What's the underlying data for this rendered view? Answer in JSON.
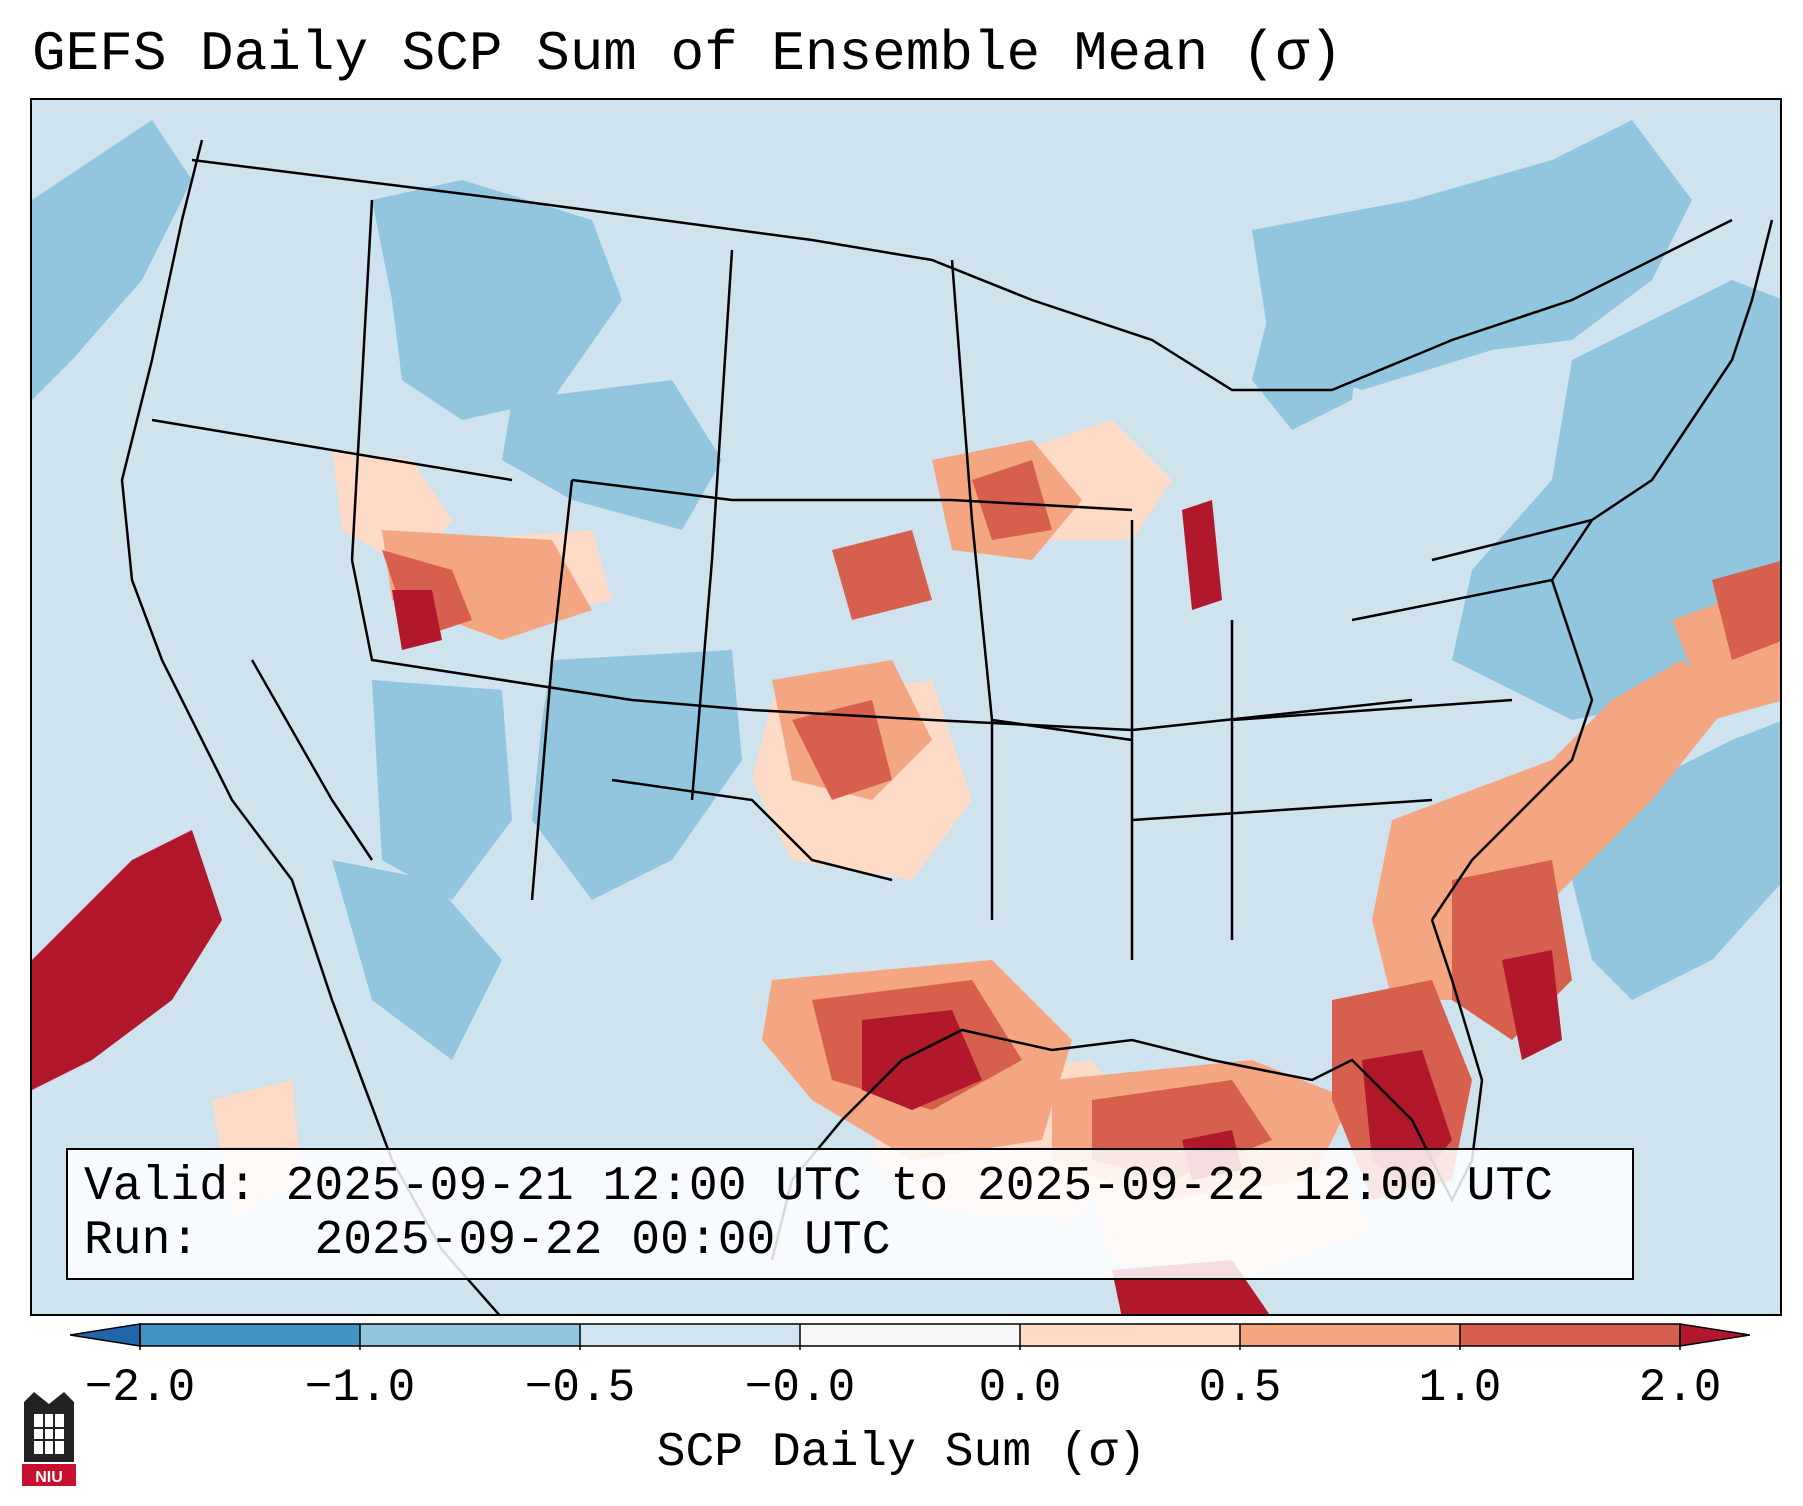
{
  "title": "GEFS Daily SCP Sum of Ensemble Mean (σ)",
  "info": {
    "valid_label": "Valid:",
    "valid_value": "2025-09-21 12:00 UTC to 2025-09-22 12:00 UTC",
    "run_label": "Run:",
    "run_value": "2025-09-22 00:00 UTC"
  },
  "colorbar": {
    "title": "SCP Daily Sum (σ)",
    "ticks": [
      "−2.0",
      "−1.0",
      "−0.5",
      "−0.0",
      "0.0",
      "0.5",
      "1.0",
      "2.0"
    ],
    "colors": [
      "#2166ac",
      "#4393c3",
      "#92c5de",
      "#d1e5f0",
      "#f7f7f7",
      "#fddbc7",
      "#f4a582",
      "#d6604d",
      "#b2182b"
    ]
  },
  "logo": {
    "text": "NIU"
  },
  "map": {
    "background_class": "#cfe3ee",
    "region": "Continental United States",
    "projection": "Lambert Conformal"
  }
}
